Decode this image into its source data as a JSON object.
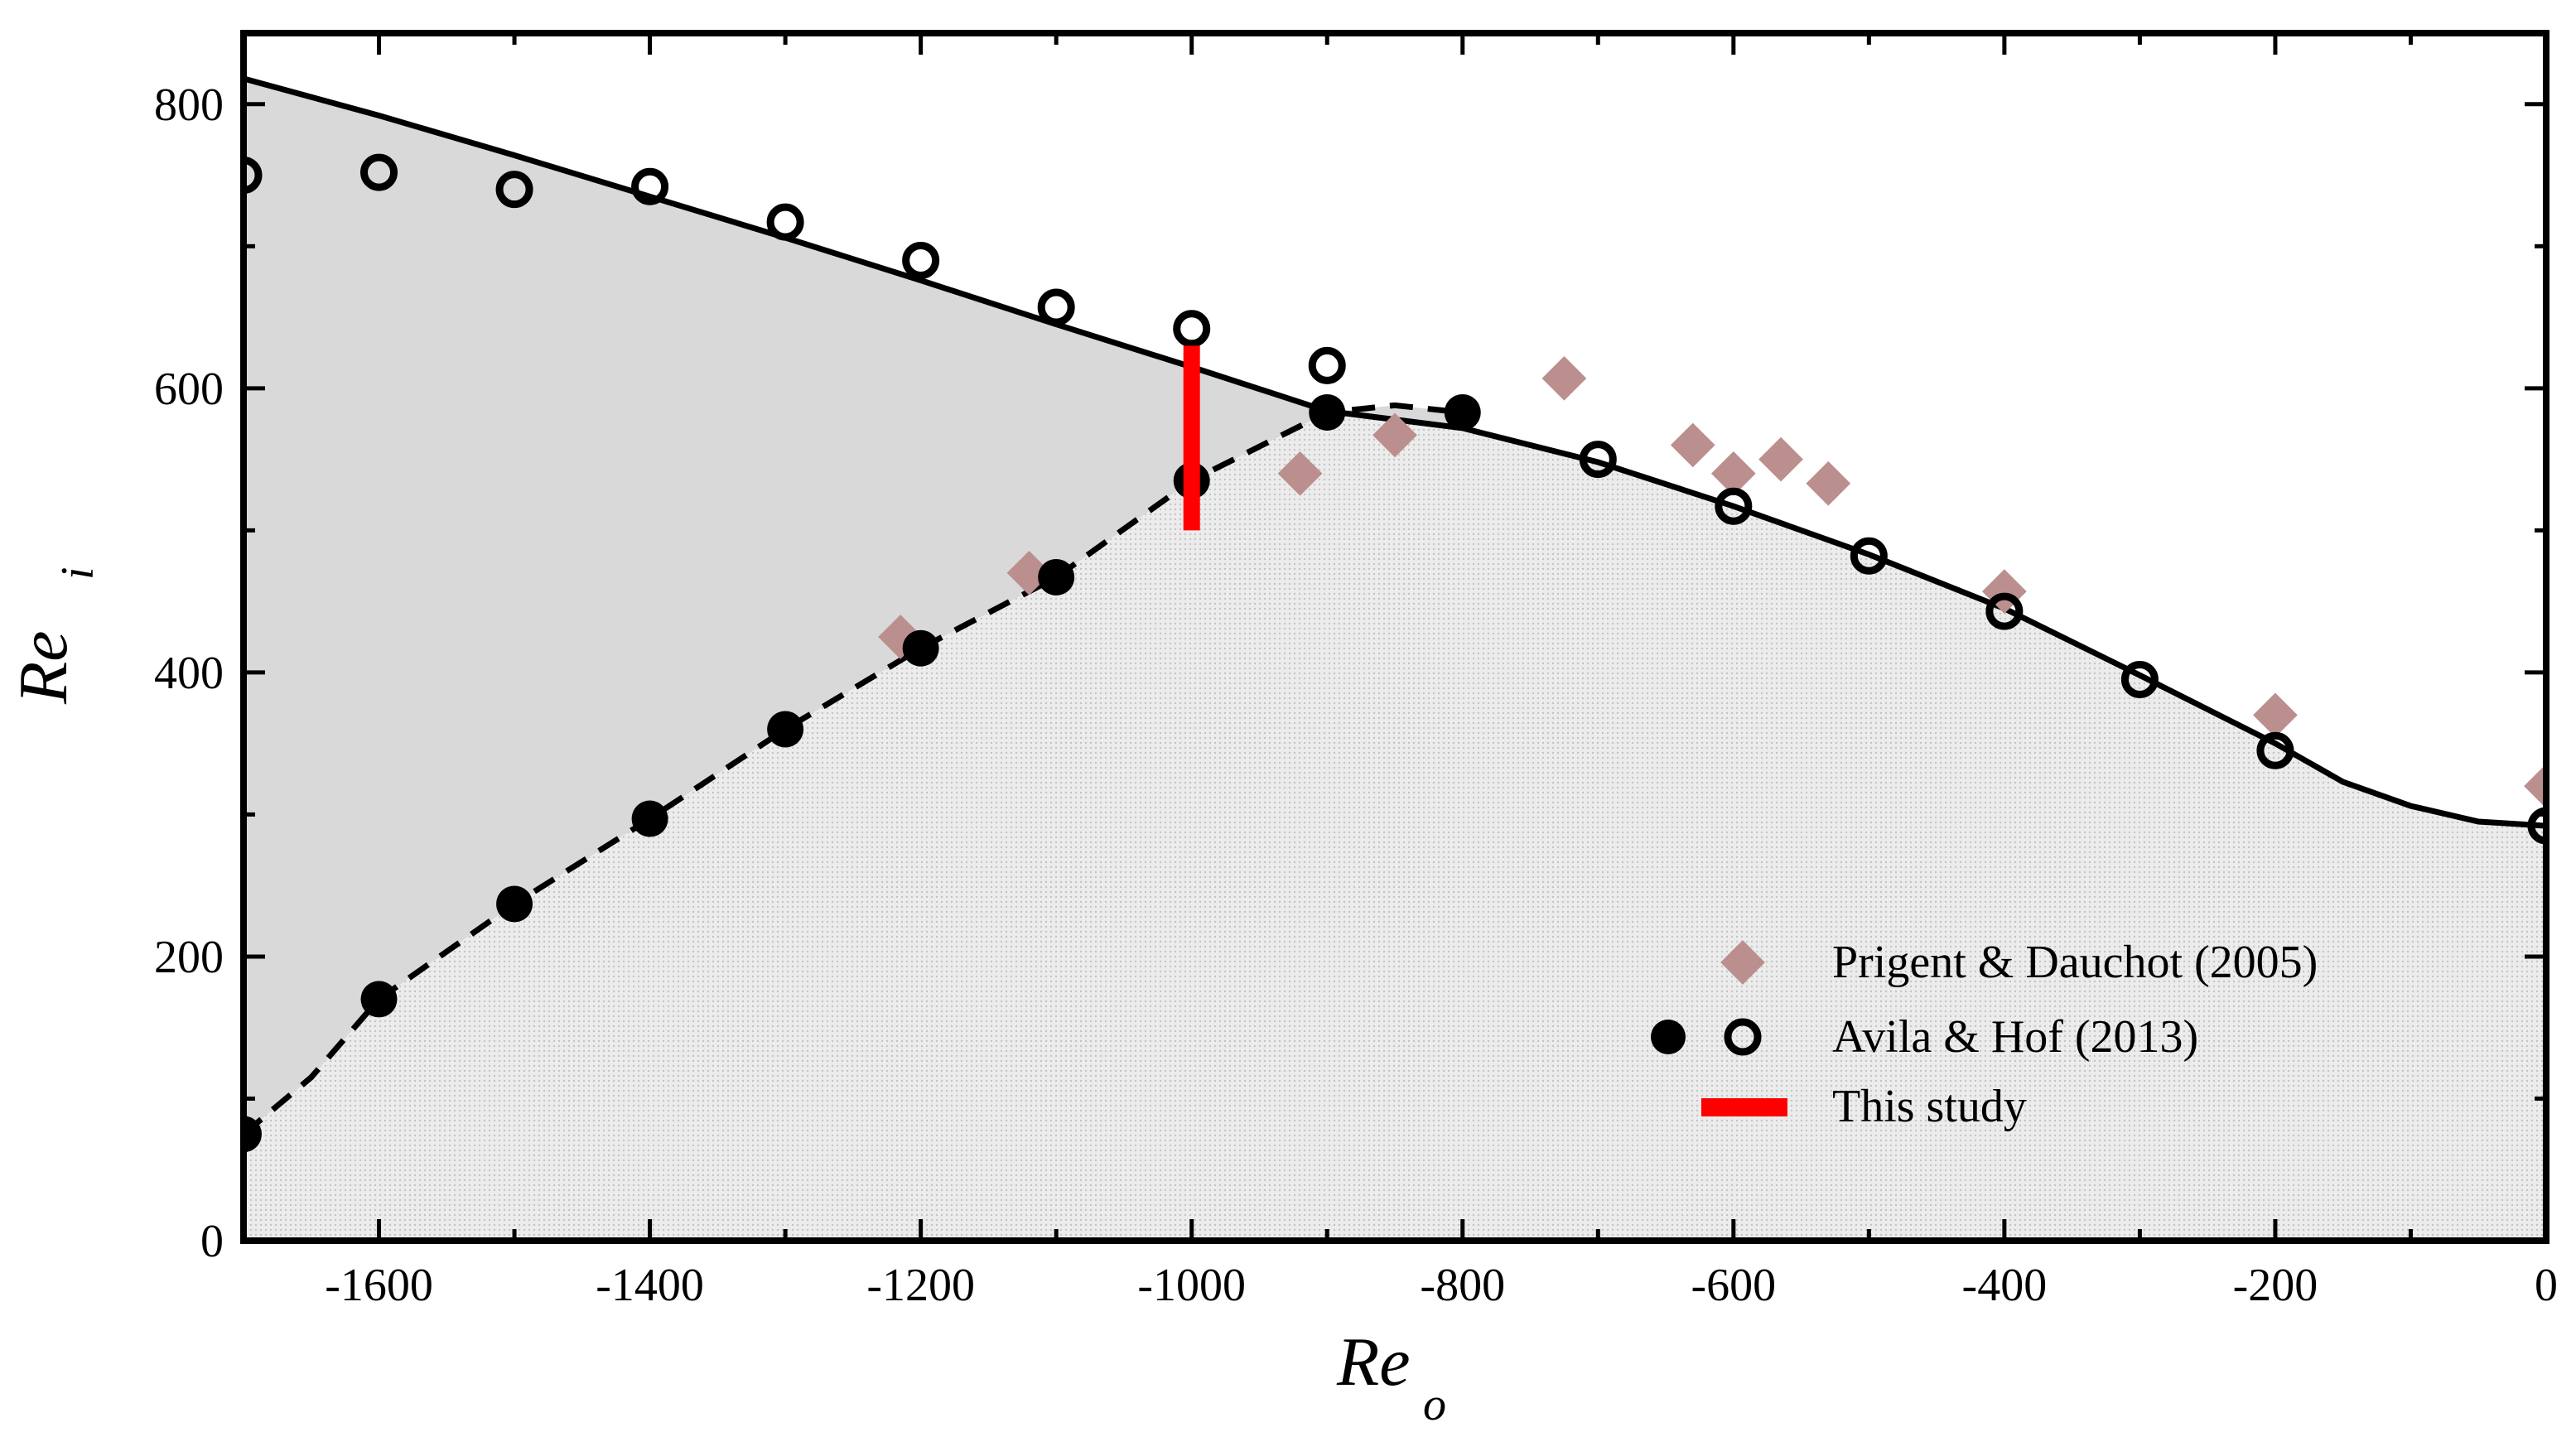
{
  "chart_data": {
    "type": "scatter",
    "xlabel": "Re",
    "xlabel_sub": "o",
    "ylabel": "Re",
    "ylabel_sub": "i",
    "xlim": [
      -1700,
      0
    ],
    "ylim": [
      0,
      850
    ],
    "x_ticks": [
      -1600,
      -1400,
      -1200,
      -1000,
      -800,
      -600,
      -400,
      -200,
      0
    ],
    "x_tick_labels": [
      "-1600",
      "-1400",
      "-1200",
      "-1000",
      "-800",
      "-600",
      "-400",
      "-200",
      "0"
    ],
    "y_ticks": [
      0,
      200,
      400,
      600,
      800
    ],
    "y_tick_labels": [
      "0",
      "200",
      "400",
      "600",
      "800"
    ],
    "legend_position": "bottom-right",
    "series": [
      {
        "name": "Prigent & Dauchot (2005)",
        "kind": "diamond",
        "color": "#bc8f8f",
        "x": [
          -1215,
          -1120,
          -920,
          -850,
          -725,
          -630,
          -600,
          -565,
          -530,
          -400,
          -200,
          0
        ],
        "y": [
          425,
          470,
          540,
          567,
          607,
          560,
          540,
          550,
          533,
          457,
          370,
          320
        ]
      },
      {
        "name": "Avila & Hof (2013)",
        "kind": "filled-circle",
        "color": "#000000",
        "x": [
          -1700,
          -1600,
          -1500,
          -1400,
          -1300,
          -1200,
          -1100,
          -1000,
          -900,
          -800
        ],
        "y": [
          75,
          170,
          237,
          297,
          360,
          417,
          467,
          535,
          583,
          583
        ]
      },
      {
        "name": "Avila & Hof (2013)",
        "kind": "open-circle",
        "color": "#000000",
        "x": [
          -1700,
          -1600,
          -1500,
          -1400,
          -1300,
          -1200,
          -1100,
          -1000,
          -900,
          -700,
          -600,
          -500,
          -400,
          -300,
          -200,
          0
        ],
        "y": [
          750,
          752,
          740,
          742,
          717,
          690,
          657,
          642,
          616,
          550,
          517,
          482,
          443,
          395,
          345,
          292
        ]
      },
      {
        "name": "This study",
        "kind": "bar",
        "color": "#ff0000",
        "x": -1000,
        "y_range": [
          500,
          630
        ]
      }
    ],
    "upper_curve": {
      "style": "solid",
      "x": [
        -1700,
        -1600,
        -1500,
        -1400,
        -1300,
        -1200,
        -1100,
        -1000,
        -900,
        -800,
        -700,
        -600,
        -500,
        -400,
        -300,
        -200,
        -150,
        -100,
        -50,
        0
      ],
      "y": [
        818,
        792,
        764,
        735,
        706,
        676,
        645,
        615,
        584,
        572,
        548,
        517,
        483,
        445,
        398,
        350,
        323,
        306,
        295,
        292
      ]
    },
    "lower_curve": {
      "style": "dashed",
      "x": [
        -1700,
        -1650,
        -1600,
        -1500,
        -1400,
        -1300,
        -1200,
        -1100,
        -1000,
        -900,
        -850,
        -800
      ],
      "y": [
        75,
        115,
        170,
        237,
        297,
        360,
        417,
        467,
        535,
        583,
        588,
        583
      ]
    },
    "legend": [
      {
        "label": "Prigent & Dauchot (2005)",
        "symbols": [
          "diamond"
        ]
      },
      {
        "label": "Avila & Hof (2013)",
        "symbols": [
          "filled-circle",
          "open-circle"
        ]
      },
      {
        "label": "This study",
        "symbols": [
          "bar"
        ]
      }
    ],
    "colors": {
      "hysteresis_region": "#d9d9d9",
      "turbulent_region": "#ebebeb",
      "prigent": "#bc8f8f",
      "this_study": "#ff0000"
    }
  }
}
